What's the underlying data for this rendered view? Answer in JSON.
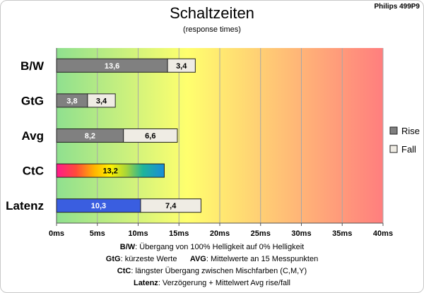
{
  "header": {
    "title": "Schaltzeiten",
    "subtitle": "(response times)",
    "corner": "Philips 499P9"
  },
  "chart_data": {
    "type": "bar",
    "orientation": "horizontal",
    "stacked": true,
    "title": "Schaltzeiten",
    "subtitle": "(response times)",
    "categories": [
      "B/W",
      "GtG",
      "Avg",
      "CtC",
      "Latenz"
    ],
    "series": [
      {
        "name": "Rise",
        "values": [
          13.6,
          3.8,
          8.2,
          null,
          10.3
        ],
        "labels": [
          "13,6",
          "3,8",
          "8,2",
          "",
          "10,3"
        ]
      },
      {
        "name": "Fall",
        "values": [
          3.4,
          3.4,
          6.6,
          null,
          7.4
        ],
        "labels": [
          "3,4",
          "3,4",
          "6,6",
          "",
          "7,4"
        ]
      },
      {
        "name": "",
        "values": [
          null,
          null,
          null,
          13.2,
          null
        ],
        "labels": [
          "",
          "",
          "",
          "13,2",
          ""
        ]
      }
    ],
    "xlim": [
      0,
      40
    ],
    "xticks": [
      0,
      5,
      10,
      15,
      20,
      25,
      30,
      35,
      40
    ],
    "xtick_labels": [
      "0ms",
      "5ms",
      "10ms",
      "15ms",
      "20ms",
      "25ms",
      "30ms",
      "35ms",
      "40ms"
    ],
    "grid": true,
    "legend": {
      "position": "right",
      "entries": [
        "Rise",
        "Fall"
      ]
    },
    "colors": {
      "rise": "#808080",
      "fall": "#efece4",
      "latenz_rise": "#3a5ee0",
      "background_gradient": [
        "#8fe08f",
        "#ffff6e",
        "#ff7e7e"
      ]
    }
  },
  "footnotes": [
    {
      "k1": "B/W",
      "t1": ":  Übergang von 100% Helligkeit auf 0% Helligkeit",
      "k2": "",
      "t2": ""
    },
    {
      "k1": "GtG",
      "t1": ": kürzeste  Werte",
      "k2": "AVG",
      "t2": ": Mittelwerte  an 15 Messpunkten"
    },
    {
      "k1": "CtC",
      "t1": ": längster Übergang  zwischen Mischfarben (C,M,Y)",
      "k2": "",
      "t2": ""
    },
    {
      "k1": "Latenz",
      "t1": ": Verzögerung  + Mittelwert Avg rise/fall",
      "k2": "",
      "t2": ""
    }
  ]
}
